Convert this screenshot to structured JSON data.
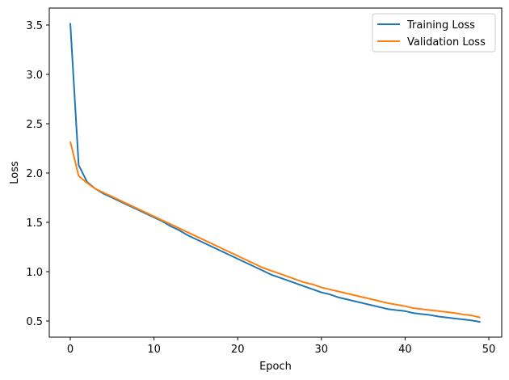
{
  "chart_data": {
    "type": "line",
    "title": "",
    "xlabel": "Epoch",
    "ylabel": "Loss",
    "xlim": [
      -2.45,
      51.45
    ],
    "ylim": [
      0.34,
      3.67
    ],
    "xticks": [
      0,
      10,
      20,
      30,
      40,
      50
    ],
    "yticks": [
      0.5,
      1.0,
      1.5,
      2.0,
      2.5,
      3.0,
      3.5
    ],
    "xtick_labels": [
      "0",
      "10",
      "20",
      "30",
      "40",
      "50"
    ],
    "ytick_labels": [
      "0.5",
      "1.0",
      "1.5",
      "2.0",
      "2.5",
      "3.0",
      "3.5"
    ],
    "grid": false,
    "legend_position": "upper right",
    "x": [
      0,
      1,
      2,
      3,
      4,
      5,
      6,
      7,
      8,
      9,
      10,
      11,
      12,
      13,
      14,
      15,
      16,
      17,
      18,
      19,
      20,
      21,
      22,
      23,
      24,
      25,
      26,
      27,
      28,
      29,
      30,
      31,
      32,
      33,
      34,
      35,
      36,
      37,
      38,
      39,
      40,
      41,
      42,
      43,
      44,
      45,
      46,
      47,
      48,
      49
    ],
    "series": [
      {
        "name": "Training Loss",
        "color": "#1f77b4",
        "values": [
          3.52,
          2.08,
          1.91,
          1.84,
          1.79,
          1.75,
          1.71,
          1.67,
          1.63,
          1.59,
          1.55,
          1.51,
          1.46,
          1.42,
          1.37,
          1.33,
          1.29,
          1.25,
          1.21,
          1.17,
          1.13,
          1.09,
          1.05,
          1.01,
          0.97,
          0.94,
          0.91,
          0.88,
          0.85,
          0.82,
          0.79,
          0.77,
          0.74,
          0.72,
          0.7,
          0.68,
          0.66,
          0.64,
          0.62,
          0.61,
          0.6,
          0.58,
          0.57,
          0.56,
          0.545,
          0.535,
          0.525,
          0.515,
          0.505,
          0.49
        ]
      },
      {
        "name": "Validation Loss",
        "color": "#ff7f0e",
        "values": [
          2.32,
          1.97,
          1.9,
          1.84,
          1.8,
          1.76,
          1.72,
          1.68,
          1.64,
          1.6,
          1.56,
          1.52,
          1.48,
          1.44,
          1.4,
          1.36,
          1.32,
          1.28,
          1.24,
          1.2,
          1.16,
          1.12,
          1.08,
          1.04,
          1.01,
          0.98,
          0.95,
          0.92,
          0.89,
          0.87,
          0.84,
          0.82,
          0.8,
          0.78,
          0.76,
          0.74,
          0.72,
          0.7,
          0.68,
          0.665,
          0.65,
          0.63,
          0.62,
          0.61,
          0.6,
          0.59,
          0.58,
          0.565,
          0.555,
          0.535
        ]
      }
    ]
  },
  "legend": {
    "items": [
      {
        "label": "Training Loss",
        "color": "#1f77b4"
      },
      {
        "label": "Validation Loss",
        "color": "#ff7f0e"
      }
    ]
  },
  "axes": {
    "xlabel": "Epoch",
    "ylabel": "Loss"
  }
}
